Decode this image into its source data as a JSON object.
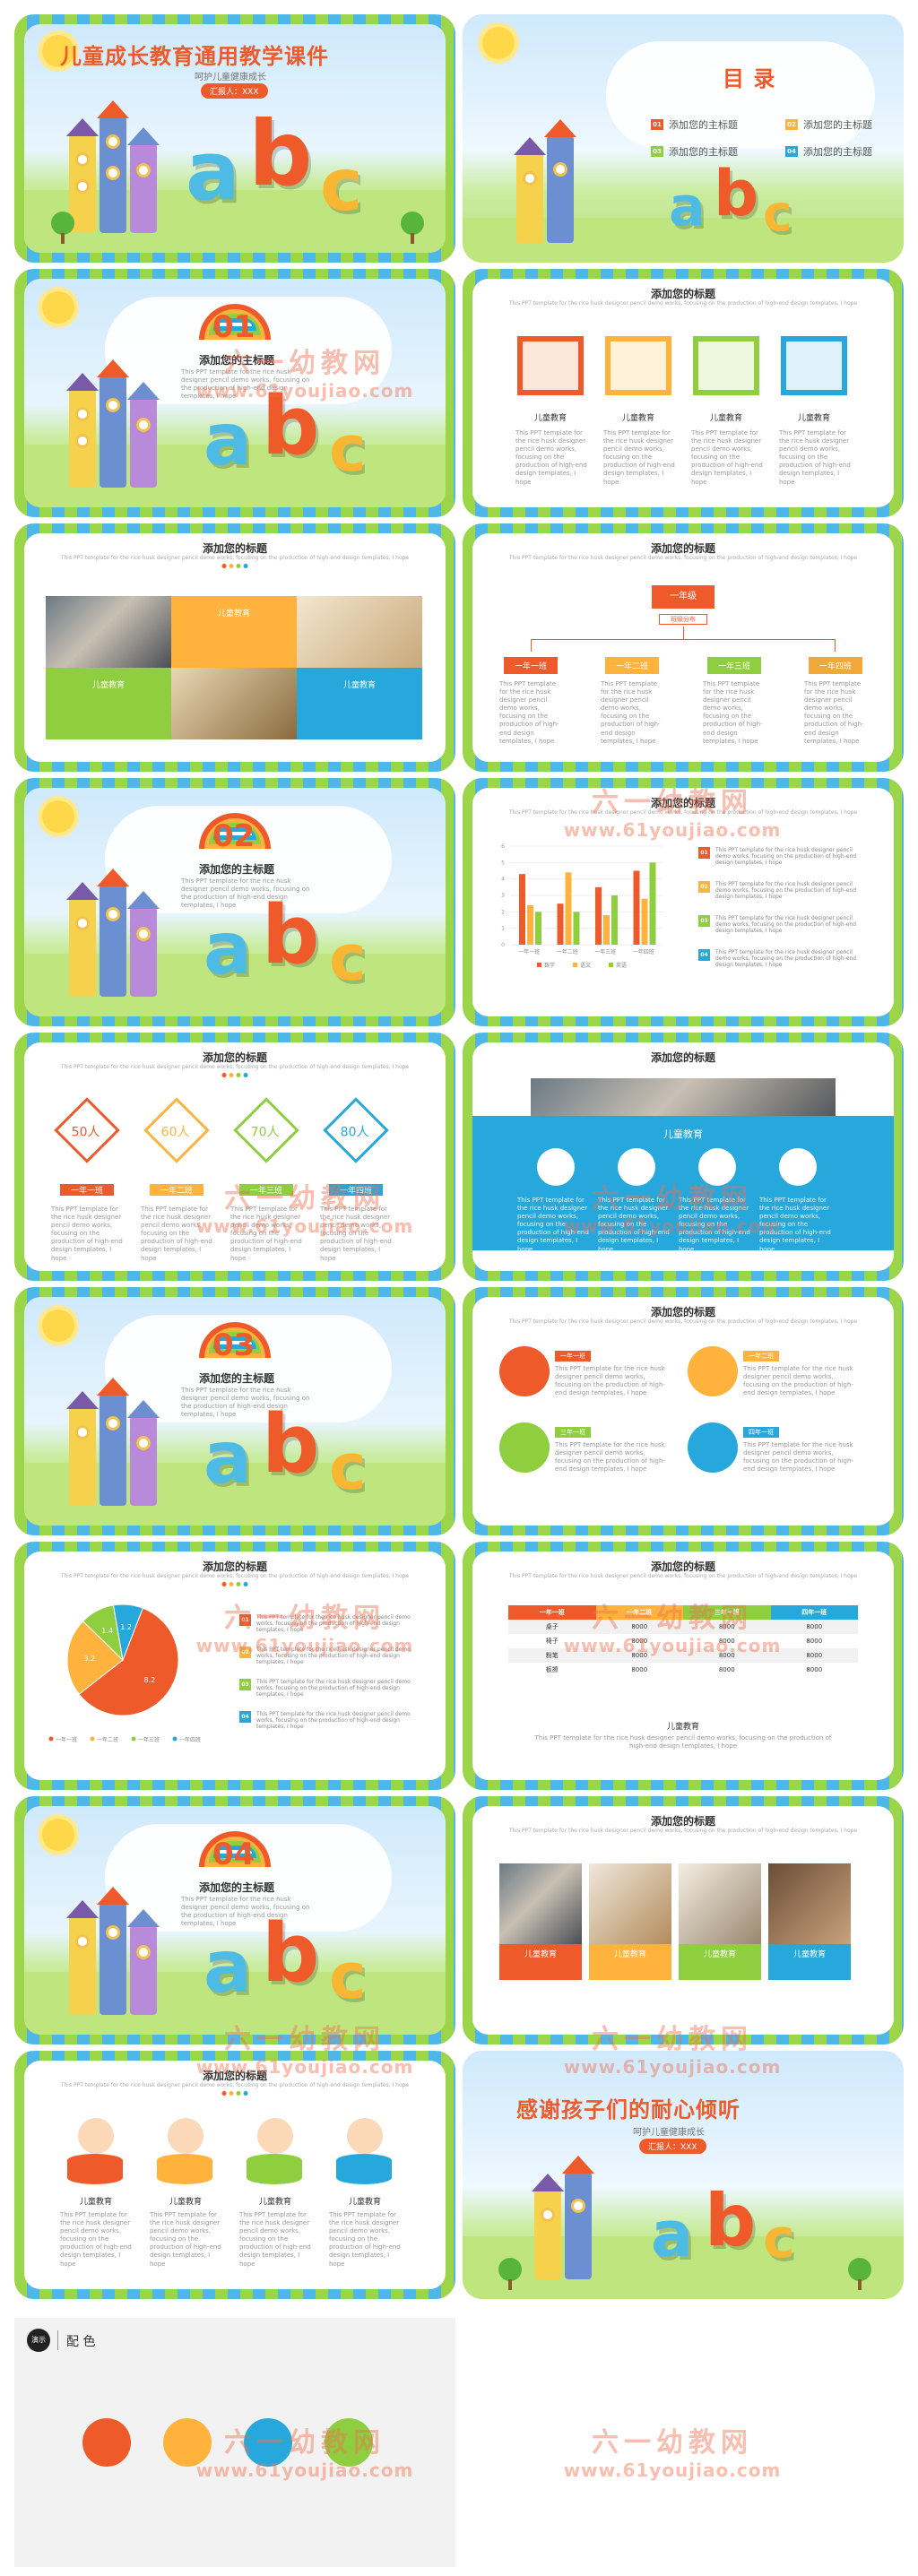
{
  "cover": {
    "title": "儿童成长教育通用教学课件",
    "subtitle": "呵护儿童健康成长",
    "presenter": "汇报人：XXX"
  },
  "toc": {
    "title": "目 录",
    "items": [
      {
        "num": "01",
        "label": "添加您的主标题",
        "color": "#ef5a2b"
      },
      {
        "num": "02",
        "label": "添加您的主标题",
        "color": "#ffb33c"
      },
      {
        "num": "03",
        "label": "添加您的主标题",
        "color": "#8fce3f"
      },
      {
        "num": "04",
        "label": "添加您的主标题",
        "color": "#27a8dc"
      }
    ]
  },
  "sections": [
    {
      "num": "01",
      "title": "添加您的主标题",
      "desc": "This PPT template for the rice husk designer pencil demo works, focusing on the production of high-end design templates, I hope"
    },
    {
      "num": "02",
      "title": "添加您的主标题",
      "desc": "This PPT template for the rice husk designer pencil demo works, focusing on the production of high-end design templates, I hope"
    },
    {
      "num": "03",
      "title": "添加您的主标题",
      "desc": "This PPT template for the rice husk designer pencil demo works, focusing on the production of high-end design templates, I hope"
    },
    {
      "num": "04",
      "title": "添加您的主标题",
      "desc": "This PPT template for the rice husk designer pencil demo works, focusing on the production of high-end design templates, I hope"
    }
  ],
  "slide_title": "添加您的标题",
  "slide_desc": "This PPT template for the rice husk designer pencil demo works, focusing on the production of high-end design templates, I hope",
  "body_text": "This PPT template for the rice husk designer pencil demo works, focusing on the production of high-end design templates, I hope",
  "kid_edu": "儿童教育",
  "frames": [
    "儿童教育",
    "儿童教育",
    "儿童教育",
    "儿童教育"
  ],
  "blocks": [
    "儿童教育",
    "儿童教育",
    "儿童教育"
  ],
  "org": {
    "top": "一年级",
    "sub": "班级分布",
    "children": [
      "一年一班",
      "一年二班",
      "一年三班",
      "一年四班"
    ]
  },
  "diamonds": {
    "values": [
      "50人",
      "60人",
      "70人",
      "80人"
    ],
    "labels": [
      "一年一班",
      "一年二班",
      "一年三班",
      "一年四班"
    ]
  },
  "chart_data": {
    "type": "bar",
    "categories": [
      "一年一班",
      "一年二班",
      "一年三班",
      "一年四班"
    ],
    "series": [
      {
        "name": "数学",
        "values": [
          4.3,
          2.5,
          3.5,
          4.5
        ],
        "color": "#ef5a2b"
      },
      {
        "name": "语文",
        "values": [
          2.4,
          4.4,
          1.8,
          2.8
        ],
        "color": "#ffb33c"
      },
      {
        "name": "英语",
        "values": [
          2.0,
          2.0,
          3.0,
          5.0
        ],
        "color": "#8fce3f"
      }
    ],
    "yticks": [
      "0",
      "1",
      "2",
      "3",
      "4",
      "5",
      "6"
    ],
    "ylim": [
      0,
      6
    ]
  },
  "pie_data": {
    "type": "pie",
    "labels": [
      "一年一班",
      "一年二班",
      "一年三班",
      "一年四班"
    ],
    "values": [
      8.2,
      3.2,
      1.4,
      1.2
    ],
    "colors": [
      "#ef5a2b",
      "#ffb33c",
      "#8fce3f",
      "#27a8dc"
    ]
  },
  "icons_slide": {
    "header": "儿童教育"
  },
  "kids_list": {
    "tags": [
      "一年一班",
      "一年二班",
      "三年一班",
      "四年一班"
    ]
  },
  "table": {
    "headers": [
      "一年一班",
      "一年二班",
      "三年一班",
      "四年一班"
    ],
    "rows": [
      [
        "桌子",
        "8000",
        "8000",
        "8000"
      ],
      [
        "椅子",
        "8000",
        "8000",
        "8000"
      ],
      [
        "粉笔",
        "8000",
        "8000",
        "8000"
      ],
      [
        "板擦",
        "8000",
        "8000",
        "8000"
      ]
    ],
    "caption": "儿童教育"
  },
  "photos": [
    "儿童教育",
    "儿童教育",
    "儿童教育",
    "儿童教育"
  ],
  "kids": [
    "儿童教育",
    "儿童教育",
    "儿童教育",
    "儿童教育"
  ],
  "thanks": {
    "title": "感谢孩子们的耐心倾听",
    "subtitle": "呵护儿童健康成长",
    "presenter": "汇报人：XXX"
  },
  "palette": {
    "badge": "演示",
    "title": "配 色",
    "colors": [
      "#ef5a2b",
      "#ffb33c",
      "#27a8dc",
      "#8fce3f"
    ]
  },
  "watermark": {
    "text": "六一幼教网",
    "url": "www.61youjiao.com"
  },
  "letters": [
    "a",
    "b",
    "c"
  ]
}
